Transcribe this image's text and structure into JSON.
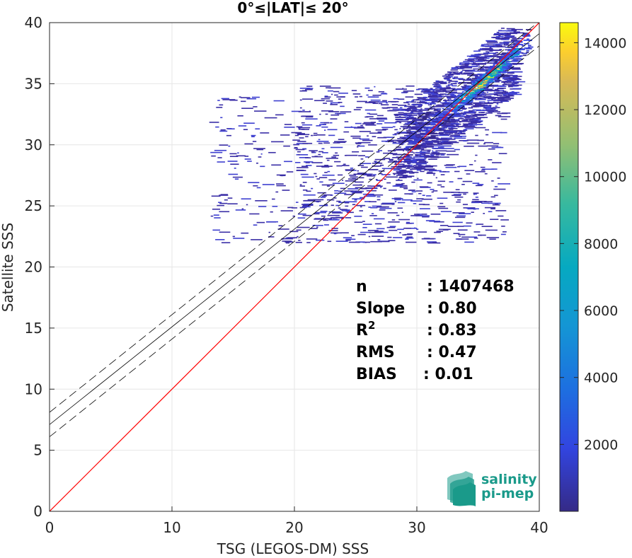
{
  "chart_data": {
    "type": "heatmap",
    "title": "0°≤|LAT|≤ 20°",
    "xlabel": "TSG (LEGOS-DM) SSS",
    "ylabel": "Satellite SSS",
    "xlim": [
      0,
      40
    ],
    "ylim": [
      0,
      40
    ],
    "xticks": [
      "0",
      "10",
      "20",
      "30",
      "40"
    ],
    "yticks": [
      "0",
      "5",
      "10",
      "15",
      "20",
      "25",
      "30",
      "35",
      "40"
    ],
    "grid": true,
    "colorbar": {
      "range": [
        0,
        14600
      ],
      "ticks": [
        "2000",
        "4000",
        "6000",
        "8000",
        "10000",
        "12000",
        "14000"
      ],
      "colormap": "parula"
    },
    "identity_line": {
      "slope": 1,
      "intercept": 0,
      "color": "#ff0000"
    },
    "fit_line": {
      "slope": 0.8,
      "intercept": 7.1,
      "color": "#000000"
    },
    "confidence_band": {
      "offset": 1.0
    },
    "density_core": [
      {
        "x": 30,
        "y": 31.0,
        "density": 0.12
      },
      {
        "x": 32,
        "y": 32.6,
        "density": 0.25
      },
      {
        "x": 34,
        "y": 34.2,
        "density": 0.55
      },
      {
        "x": 35,
        "y": 35.0,
        "density": 0.8
      },
      {
        "x": 36,
        "y": 35.8,
        "density": 1.0
      },
      {
        "x": 37,
        "y": 36.7,
        "density": 0.6
      },
      {
        "x": 38,
        "y": 37.6,
        "density": 0.25
      }
    ],
    "stats": [
      {
        "label": "n",
        "value": ": 1407468"
      },
      {
        "label": "Slope",
        "value": ": 0.80"
      },
      {
        "label": "R",
        "sup": "2",
        "value": ": 0.83"
      },
      {
        "label": "RMS",
        "value": ": 0.47"
      },
      {
        "label": "BIAS",
        "value": ": 0.01"
      }
    ]
  },
  "logo": {
    "line1": "salinity",
    "line2": "pi-mep"
  }
}
